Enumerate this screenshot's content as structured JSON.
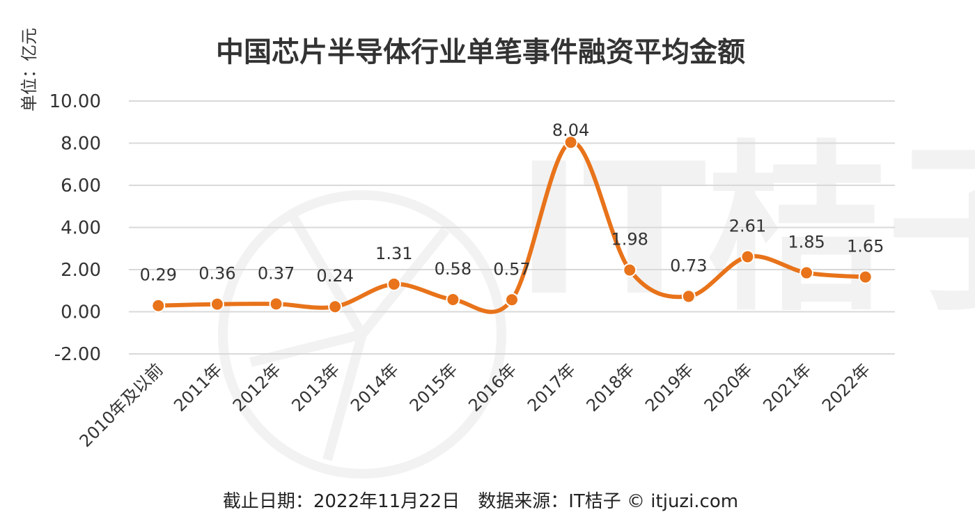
{
  "chart_data": {
    "type": "line",
    "title": "中国芯片半导体行业单笔事件融资平均金额",
    "ylabel": "单位：亿元",
    "xlabel": "",
    "categories": [
      "2010年及以前",
      "2011年",
      "2012年",
      "2013年",
      "2014年",
      "2015年",
      "2016年",
      "2017年",
      "2018年",
      "2019年",
      "2020年",
      "2021年",
      "2022年"
    ],
    "values": [
      0.29,
      0.36,
      0.37,
      0.24,
      1.31,
      0.58,
      0.57,
      8.04,
      1.98,
      0.73,
      2.61,
      1.85,
      1.65
    ],
    "data_labels": [
      "0.29",
      "0.36",
      "0.37",
      "0.24",
      "1.31",
      "0.58",
      "0.57",
      "8.04",
      "1.98",
      "0.73",
      "2.61",
      "1.85",
      "1.65"
    ],
    "yticks": [
      "10.00",
      "8.00",
      "6.00",
      "4.00",
      "2.00",
      "0.00",
      "-2.00"
    ],
    "ylim": [
      -2,
      10
    ],
    "grid": true,
    "smooth": true,
    "line_color": "#E8731A",
    "footer": "截止日期：2022年11月22日　数据来源：IT桔子 © itjuzi.com",
    "watermark": "IT桔子 ITJUZI.COM"
  }
}
